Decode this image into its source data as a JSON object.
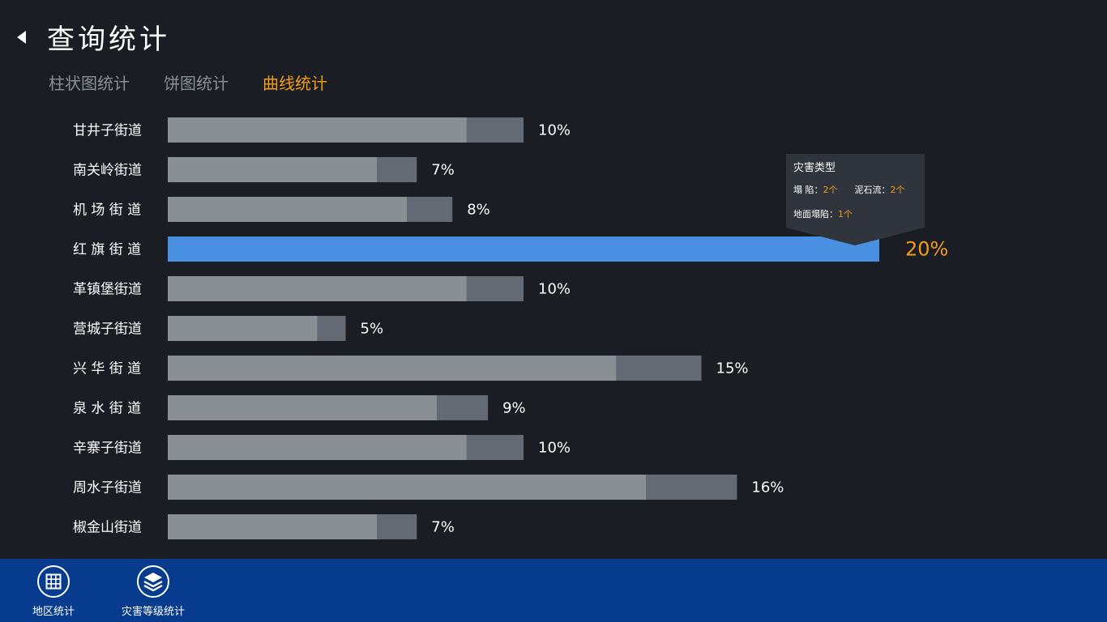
{
  "header": {
    "title": "查询统计",
    "back_icon": "back-arrow-icon"
  },
  "tabs": [
    {
      "label": "柱状图统计",
      "active": false
    },
    {
      "label": "饼图统计",
      "active": false
    },
    {
      "label": "曲线统计",
      "active": true
    }
  ],
  "colors": {
    "background": "#1a1d24",
    "bar_light": "#8a8f96",
    "bar_dark": "#646a73",
    "highlight": "#4a90e2",
    "accent": "#f39c1a",
    "bottom_bar": "#063b8e"
  },
  "chart_data": {
    "type": "bar",
    "orientation": "horizontal",
    "categories": [
      "甘井子街道",
      "南关岭街道",
      "机 场 街 道",
      "红 旗 街 道",
      "革镇堡街道",
      "营城子街道",
      "兴 华 街 道",
      "泉 水 街 道",
      "辛寨子街道",
      "周水子街道",
      "椒金山街道"
    ],
    "values": [
      10,
      7,
      8,
      20,
      10,
      5,
      15,
      9,
      10,
      16,
      7
    ],
    "labels": [
      "10%",
      "7%",
      "8%",
      "20%",
      "10%",
      "5%",
      "15%",
      "9%",
      "10%",
      "16%",
      "7%"
    ],
    "highlight_index": 3
  },
  "tooltip": {
    "title": "灾害类型",
    "items": [
      {
        "label": "塌 陷：",
        "value": "2个"
      },
      {
        "label": "泥石流：",
        "value": "2个"
      },
      {
        "label": "地面塌陷：",
        "value": "1个"
      }
    ]
  },
  "bottom_bar": {
    "buttons": [
      {
        "label": "地区统计",
        "icon": "grid-icon"
      },
      {
        "label": "灾害等级统计",
        "icon": "layers-icon"
      }
    ]
  }
}
